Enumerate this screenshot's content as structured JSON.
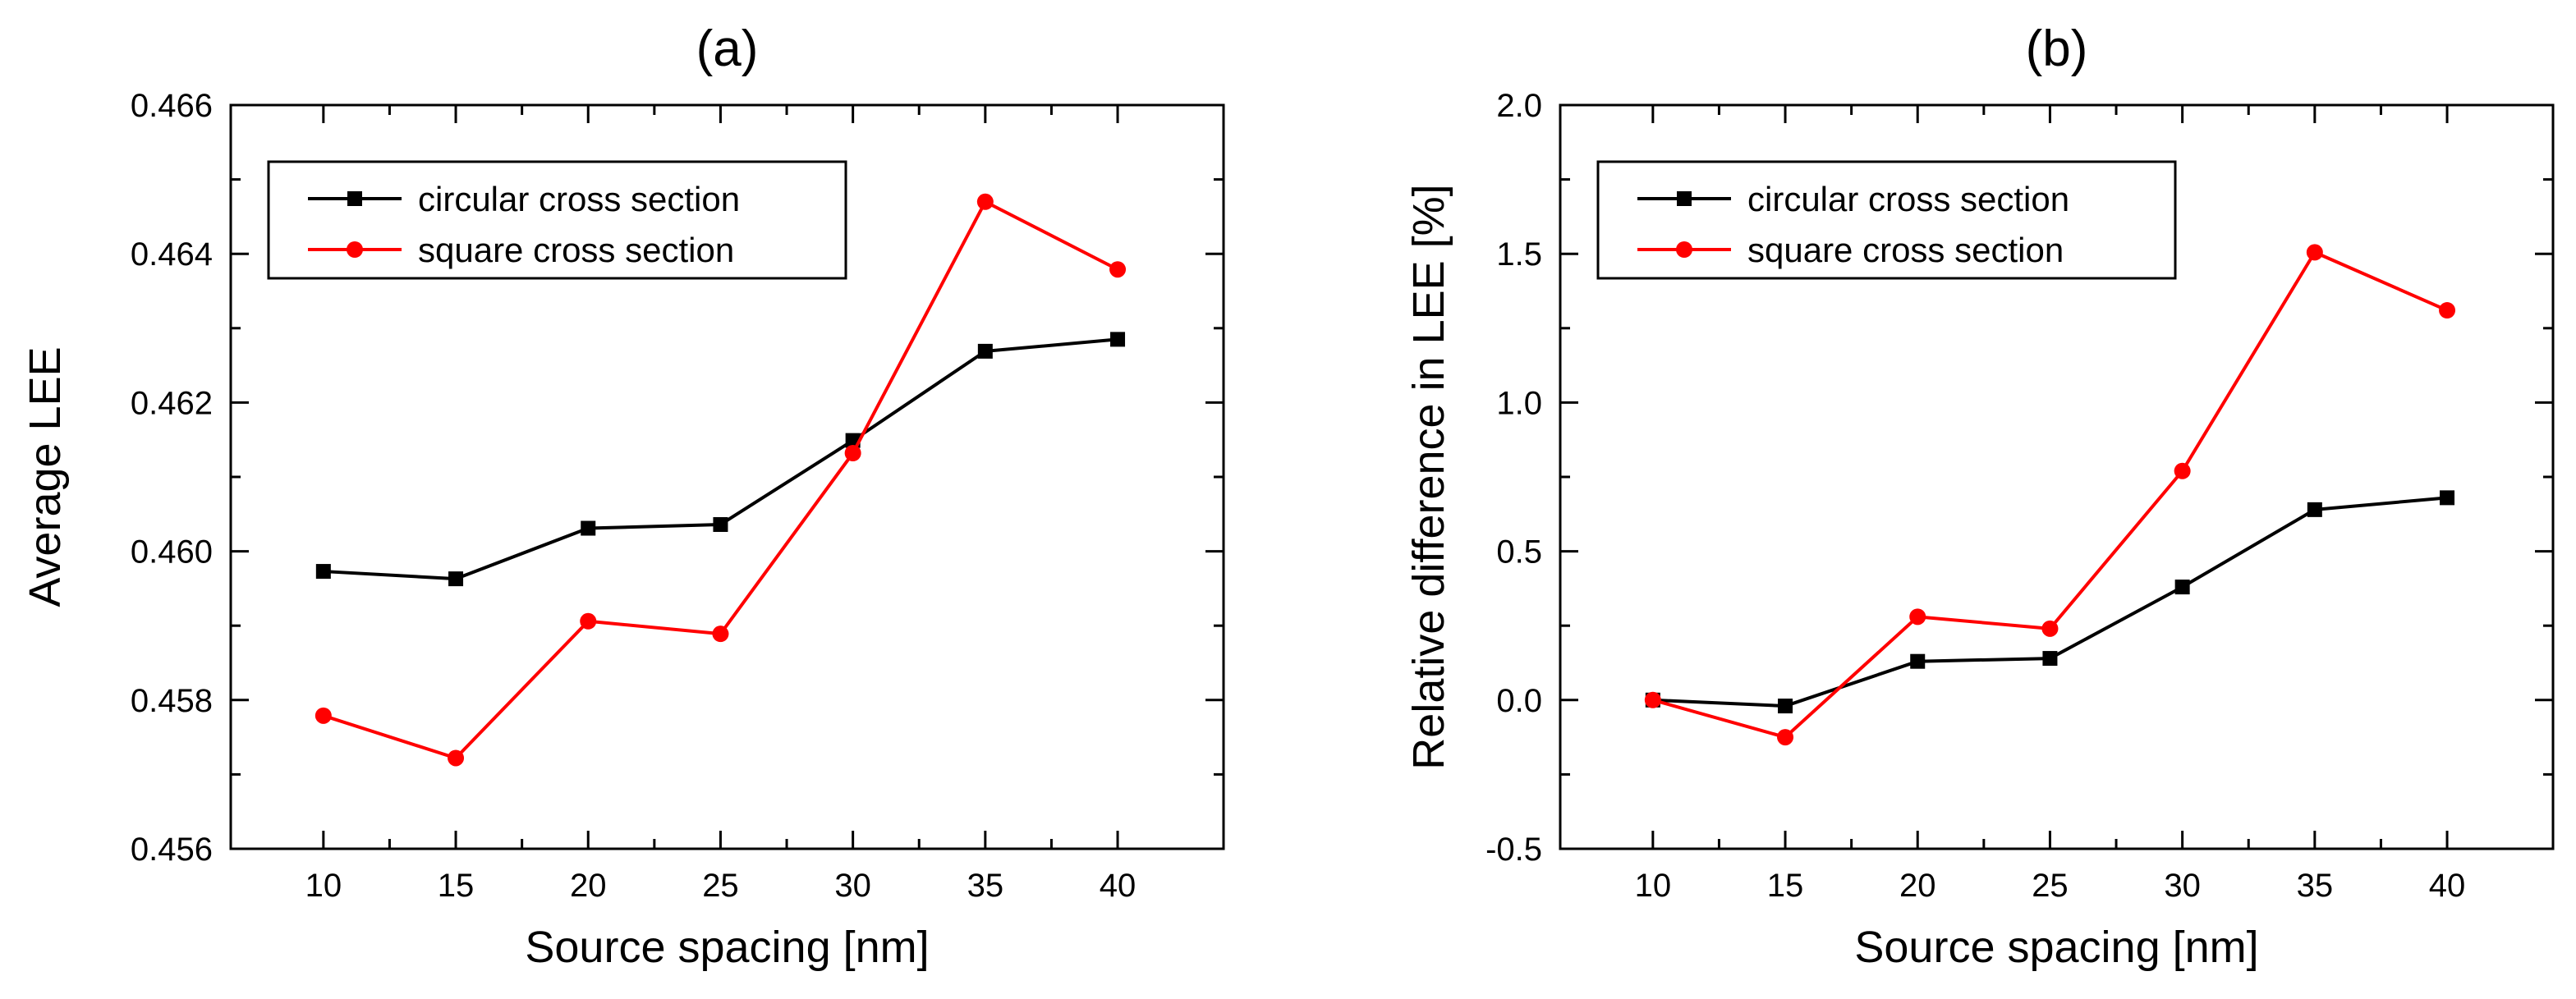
{
  "chart_data": [
    {
      "type": "line",
      "panel_label": "(a)",
      "xlabel": "Source spacing [nm]",
      "ylabel": "Average LEE",
      "x": [
        10,
        15,
        20,
        25,
        30,
        35,
        40
      ],
      "xlim": [
        6.5,
        44
      ],
      "ylim": [
        0.456,
        0.466
      ],
      "xticks": [
        10,
        15,
        20,
        25,
        30,
        35,
        40
      ],
      "yticks": [
        0.456,
        0.458,
        0.46,
        0.462,
        0.464,
        0.466
      ],
      "ytick_labels": [
        "0.456",
        "0.458",
        "0.460",
        "0.462",
        "0.464",
        "0.466"
      ],
      "legend_position": "top-left",
      "series": [
        {
          "name": "circular cross section",
          "color": "#000000",
          "marker": "square",
          "values": [
            0.45973,
            0.45963,
            0.46031,
            0.46036,
            0.46149,
            0.46269,
            0.46285
          ]
        },
        {
          "name": "square cross section",
          "color": "#ff0000",
          "marker": "circle",
          "values": [
            0.45779,
            0.45722,
            0.45906,
            0.45889,
            0.46132,
            0.4647,
            0.46379
          ]
        }
      ]
    },
    {
      "type": "line",
      "panel_label": "(b)",
      "xlabel": "Source spacing [nm]",
      "ylabel": "Relative difference in LEE [%]",
      "x": [
        10,
        15,
        20,
        25,
        30,
        35,
        40
      ],
      "xlim": [
        6.5,
        44
      ],
      "ylim": [
        -0.5,
        2.0
      ],
      "xticks": [
        10,
        15,
        20,
        25,
        30,
        35,
        40
      ],
      "yticks": [
        -0.5,
        0,
        0.5,
        1,
        1.5,
        2
      ],
      "ytick_labels": [
        "-0.5",
        "0.0",
        "0.5",
        "1.0",
        "1.5",
        "2.0"
      ],
      "legend_position": "top-left",
      "series": [
        {
          "name": "circular cross section",
          "color": "#000000",
          "marker": "square",
          "values": [
            0.0,
            -0.02,
            0.13,
            0.14,
            0.38,
            0.64,
            0.68
          ]
        },
        {
          "name": "square cross section",
          "color": "#ff0000",
          "marker": "circle",
          "values": [
            0.0,
            -0.125,
            0.28,
            0.24,
            0.77,
            1.505,
            1.31
          ]
        }
      ]
    }
  ]
}
